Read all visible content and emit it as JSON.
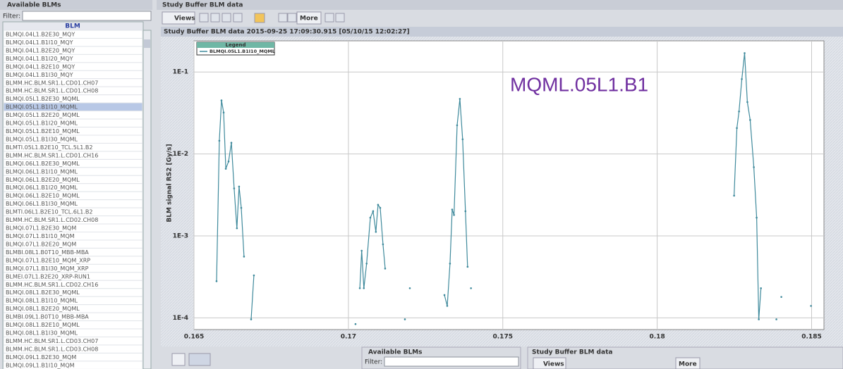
{
  "left_panel": {
    "title": "Available BLMs",
    "filter_label": "Filter:",
    "column": "BLM",
    "selected": 9,
    "items": [
      "BLMQI.04L1.B2E30_MQY",
      "BLMQI.04L1.B1I10_MQY",
      "BLMQI.04L1.B2E20_MQY",
      "BLMQI.04L1.B1I20_MQY",
      "BLMQI.04L1.B2E10_MQY",
      "BLMQI.04L1.B1I30_MQY",
      "BLMM.HC.BLM.SR1.L.CD01.CH07",
      "BLMM.HC.BLM.SR1.L.CD01.CH08",
      "BLMQI.05L1.B2E30_MQML",
      "BLMQI.05L1.B1I10_MQML",
      "BLMQI.05L1.B2E20_MQML",
      "BLMQI.05L1.B1I20_MQML",
      "BLMQI.05L1.B2E10_MQML",
      "BLMQI.05L1.B1I30_MQML",
      "BLMTI.05L1.B2E10_TCL.5L1.B2",
      "BLMM.HC.BLM.SR1.L.CD01.CH16",
      "BLMQI.06L1.B2E30_MQML",
      "BLMQI.06L1.B1I10_MQML",
      "BLMQI.06L1.B2E20_MQML",
      "BLMQI.06L1.B1I20_MQML",
      "BLMQI.06L1.B2E10_MQML",
      "BLMQI.06L1.B1I30_MQML",
      "BLMTI.06L1.B2E10_TCL.6L1.B2",
      "BLMM.HC.BLM.SR1.L.CD02.CH08",
      "BLMQI.07L1.B2E30_MQM",
      "BLMQI.07L1.B1I10_MQM",
      "BLMQI.07L1.B2E20_MQM",
      "BLMBI.08L1.B0T10_MBB-MBA",
      "BLMQI.07L1.B2E10_MQM_XRP",
      "BLMQI.07L1.B1I30_MQM_XRP",
      "BLMEI.07L1.B2E20_XRP-RUN1",
      "BLMM.HC.BLM.SR1.L.CD02.CH16",
      "BLMQI.08L1.B2E30_MQML",
      "BLMQI.08L1.B1I10_MQML",
      "BLMQI.08L1.B2E20_MQML",
      "BLMBI.09L1.B0T10_MBB-MBA",
      "BLMQI.08L1.B2E10_MQML",
      "BLMQI.08L1.B1I30_MQML",
      "BLMM.HC.BLM.SR1.L.CD03.CH07",
      "BLMM.HC.BLM.SR1.L.CD03.CH08",
      "BLMQI.09L1.B2E30_MQM",
      "BLMQI.09L1.B1I10_MQM"
    ]
  },
  "right_panel": {
    "title": "Study Buffer BLM data",
    "views": "Views",
    "more": "More"
  },
  "bottom_panels": {
    "left_title": "Available BLMs",
    "filter_label": "Filter:",
    "right_title": "Study Buffer BLM data",
    "views": "Views",
    "more": "More"
  },
  "chart_data": {
    "type": "line",
    "title": "Study Buffer BLM data 2015-09-25 17:09:30.915 [05/10/15 12:02:27]",
    "ylabel": "BLM signal RS2 [Gy/s]",
    "annotation": "MQML.05L1.B1",
    "legend_title": "Legend",
    "log_y": true,
    "grid": true,
    "xlim": [
      0.165,
      0.1854
    ],
    "ylim": [
      7.2e-05,
      0.24
    ],
    "xticks": [
      0.165,
      0.17,
      0.175,
      0.18,
      0.185
    ],
    "yticks": [
      {
        "value": 0.0001,
        "label": "1E-4"
      },
      {
        "value": 0.001,
        "label": "1E-3"
      },
      {
        "value": 0.01,
        "label": "1E-2"
      },
      {
        "value": 0.1,
        "label": "1E-1"
      }
    ],
    "x": [
      0.16573,
      0.16582,
      0.16589,
      0.16596,
      0.16603,
      0.16612,
      0.16621,
      0.1663,
      0.16639,
      0.16646,
      0.16653,
      0.16662,
      null,
      0.16685,
      0.16694,
      null,
      0.17023,
      null,
      0.17037,
      0.17043,
      0.1705,
      0.17059,
      0.17071,
      0.1708,
      0.17089,
      0.17096,
      0.17103,
      0.17112,
      0.17119,
      null,
      0.17183,
      null,
      0.17199,
      null,
      0.17311,
      0.1732,
      0.17329,
      0.17336,
      0.17342,
      0.17352,
      0.17361,
      0.1737,
      0.17379,
      0.17386,
      null,
      0.17397,
      null,
      0.18249,
      0.18258,
      0.18265,
      0.18274,
      0.18283,
      0.18292,
      0.18301,
      0.18313,
      0.18322,
      0.18329,
      0.18336,
      null,
      0.18386,
      null,
      0.18402,
      null,
      0.18498
    ],
    "series": [
      {
        "name": "BLMQI.05L1.B1I10_MQML",
        "color": "#3f8a9c",
        "values": [
          0.00028,
          0.0145,
          0.045,
          0.032,
          0.0066,
          0.0081,
          0.0137,
          0.0038,
          0.00124,
          0.004,
          0.0022,
          0.00056,
          null,
          9.6e-05,
          0.00033,
          null,
          8.4e-05,
          null,
          0.00023,
          0.00066,
          0.00023,
          0.00046,
          0.00167,
          0.002,
          0.00112,
          0.0024,
          0.0022,
          0.00079,
          0.0004,
          null,
          9.6e-05,
          null,
          0.00023,
          null,
          0.00019,
          0.00014,
          0.00046,
          0.0021,
          0.0018,
          0.0224,
          0.047,
          0.0151,
          0.002,
          0.00042,
          null,
          0.00023,
          null,
          0.0031,
          0.0207,
          0.033,
          0.082,
          0.17,
          0.043,
          0.026,
          0.0069,
          0.00167,
          9.6e-05,
          0.00023,
          null,
          9.6e-05,
          null,
          0.00018,
          null,
          0.00014
        ]
      }
    ]
  }
}
